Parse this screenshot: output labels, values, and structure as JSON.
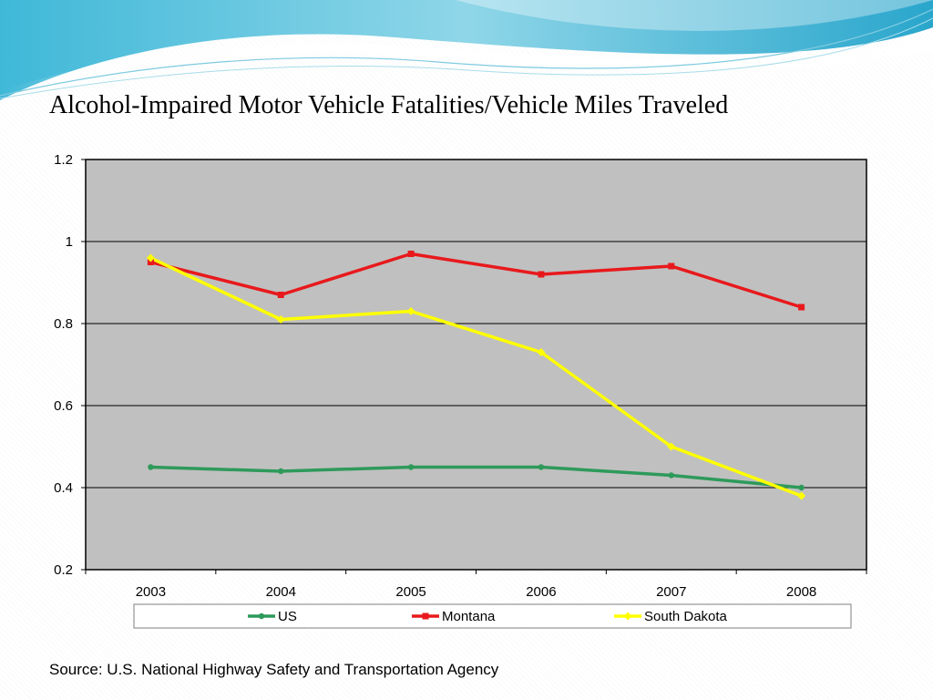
{
  "slide": {
    "title": "Alcohol-Impaired Motor Vehicle Fatalities/Vehicle Miles Traveled",
    "source": "Source: U.S. National Highway Safety and Transportation Agency"
  },
  "chart_data": {
    "type": "line",
    "title": "",
    "xlabel": "",
    "ylabel": "",
    "categories": [
      "2003",
      "2004",
      "2005",
      "2006",
      "2007",
      "2008"
    ],
    "ylim": [
      0.2,
      1.2
    ],
    "yticks": [
      0.2,
      0.4,
      0.6,
      0.8,
      1,
      1.2
    ],
    "ytick_labels": [
      "0.2",
      "0.4",
      "0.6",
      "0.8",
      "1",
      "1.2"
    ],
    "grid": true,
    "legend_position": "bottom",
    "plot_background": "#c0c0c0",
    "series": [
      {
        "name": "US",
        "color": "#2e9a5a",
        "marker": "circle",
        "values": [
          0.45,
          0.44,
          0.45,
          0.45,
          0.43,
          0.4
        ]
      },
      {
        "name": "Montana",
        "color": "#e8191c",
        "marker": "square",
        "values": [
          0.95,
          0.87,
          0.97,
          0.92,
          0.94,
          0.84
        ]
      },
      {
        "name": "South Dakota",
        "color": "#ffff00",
        "marker": "diamond",
        "values": [
          0.96,
          0.81,
          0.83,
          0.73,
          0.5,
          0.38
        ]
      }
    ]
  }
}
